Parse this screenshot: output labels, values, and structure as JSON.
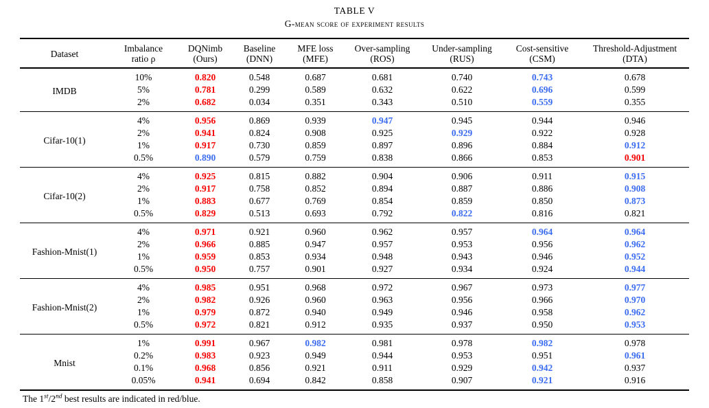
{
  "caption": {
    "number": "TABLE V",
    "title": "G-mean score of experiment results"
  },
  "colors": {
    "first_best": "#f80000",
    "second_best": "#3b6cf2",
    "text": "#000000",
    "background": "#ffffff"
  },
  "table": {
    "columns": [
      {
        "line1": "Dataset",
        "line2": ""
      },
      {
        "line1": "Imbalance",
        "line2": "ratio ρ"
      },
      {
        "line1": "DQNimb",
        "line2": "(Ours)"
      },
      {
        "line1": "Baseline",
        "line2": "(DNN)"
      },
      {
        "line1": "MFE loss",
        "line2": "(MFE)"
      },
      {
        "line1": "Over-sampling",
        "line2": "(ROS)"
      },
      {
        "line1": "Under-sampling",
        "line2": "(RUS)"
      },
      {
        "line1": "Cost-sensitive",
        "line2": "(CSM)"
      },
      {
        "line1": "Threshold-Adjustment",
        "line2": "(DTA)"
      }
    ],
    "rank_meaning": {
      "1": "first best, shown red bold",
      "2": "second best, shown blue bold",
      "0": "normal"
    },
    "groups": [
      {
        "dataset": "IMDB",
        "rows": [
          {
            "ratio": "10%",
            "values": [
              "0.820",
              "0.548",
              "0.687",
              "0.681",
              "0.740",
              "0.743",
              "0.678"
            ],
            "ranks": [
              1,
              0,
              0,
              0,
              0,
              2,
              0
            ]
          },
          {
            "ratio": "5%",
            "values": [
              "0.781",
              "0.299",
              "0.589",
              "0.632",
              "0.622",
              "0.696",
              "0.599"
            ],
            "ranks": [
              1,
              0,
              0,
              0,
              0,
              2,
              0
            ]
          },
          {
            "ratio": "2%",
            "values": [
              "0.682",
              "0.034",
              "0.351",
              "0.343",
              "0.510",
              "0.559",
              "0.355"
            ],
            "ranks": [
              1,
              0,
              0,
              0,
              0,
              2,
              0
            ]
          }
        ]
      },
      {
        "dataset": "Cifar-10(1)",
        "rows": [
          {
            "ratio": "4%",
            "values": [
              "0.956",
              "0.869",
              "0.939",
              "0.947",
              "0.945",
              "0.944",
              "0.946"
            ],
            "ranks": [
              1,
              0,
              0,
              2,
              0,
              0,
              0
            ]
          },
          {
            "ratio": "2%",
            "values": [
              "0.941",
              "0.824",
              "0.908",
              "0.925",
              "0.929",
              "0.922",
              "0.928"
            ],
            "ranks": [
              1,
              0,
              0,
              0,
              2,
              0,
              0
            ]
          },
          {
            "ratio": "1%",
            "values": [
              "0.917",
              "0.730",
              "0.859",
              "0.897",
              "0.896",
              "0.884",
              "0.912"
            ],
            "ranks": [
              1,
              0,
              0,
              0,
              0,
              0,
              2
            ]
          },
          {
            "ratio": "0.5%",
            "values": [
              "0.890",
              "0.579",
              "0.759",
              "0.838",
              "0.866",
              "0.853",
              "0.901"
            ],
            "ranks": [
              2,
              0,
              0,
              0,
              0,
              0,
              1
            ]
          }
        ]
      },
      {
        "dataset": "Cifar-10(2)",
        "rows": [
          {
            "ratio": "4%",
            "values": [
              "0.925",
              "0.815",
              "0.882",
              "0.904",
              "0.906",
              "0.911",
              "0.915"
            ],
            "ranks": [
              1,
              0,
              0,
              0,
              0,
              0,
              2
            ]
          },
          {
            "ratio": "2%",
            "values": [
              "0.917",
              "0.758",
              "0.852",
              "0.894",
              "0.887",
              "0.886",
              "0.908"
            ],
            "ranks": [
              1,
              0,
              0,
              0,
              0,
              0,
              2
            ]
          },
          {
            "ratio": "1%",
            "values": [
              "0.883",
              "0.677",
              "0.769",
              "0.854",
              "0.859",
              "0.850",
              "0.873"
            ],
            "ranks": [
              1,
              0,
              0,
              0,
              0,
              0,
              2
            ]
          },
          {
            "ratio": "0.5%",
            "values": [
              "0.829",
              "0.513",
              "0.693",
              "0.792",
              "0.822",
              "0.816",
              "0.821"
            ],
            "ranks": [
              1,
              0,
              0,
              0,
              2,
              0,
              0
            ]
          }
        ]
      },
      {
        "dataset": "Fashion-Mnist(1)",
        "rows": [
          {
            "ratio": "4%",
            "values": [
              "0.971",
              "0.921",
              "0.960",
              "0.962",
              "0.957",
              "0.964",
              "0.964"
            ],
            "ranks": [
              1,
              0,
              0,
              0,
              0,
              2,
              2
            ]
          },
          {
            "ratio": "2%",
            "values": [
              "0.966",
              "0.885",
              "0.947",
              "0.957",
              "0.953",
              "0.956",
              "0.962"
            ],
            "ranks": [
              1,
              0,
              0,
              0,
              0,
              0,
              2
            ]
          },
          {
            "ratio": "1%",
            "values": [
              "0.959",
              "0.853",
              "0.934",
              "0.948",
              "0.943",
              "0.946",
              "0.952"
            ],
            "ranks": [
              1,
              0,
              0,
              0,
              0,
              0,
              2
            ]
          },
          {
            "ratio": "0.5%",
            "values": [
              "0.950",
              "0.757",
              "0.901",
              "0.927",
              "0.934",
              "0.924",
              "0.944"
            ],
            "ranks": [
              1,
              0,
              0,
              0,
              0,
              0,
              2
            ]
          }
        ]
      },
      {
        "dataset": "Fashion-Mnist(2)",
        "rows": [
          {
            "ratio": "4%",
            "values": [
              "0.985",
              "0.951",
              "0.968",
              "0.972",
              "0.967",
              "0.973",
              "0.977"
            ],
            "ranks": [
              1,
              0,
              0,
              0,
              0,
              0,
              2
            ]
          },
          {
            "ratio": "2%",
            "values": [
              "0.982",
              "0.926",
              "0.960",
              "0.963",
              "0.956",
              "0.966",
              "0.970"
            ],
            "ranks": [
              1,
              0,
              0,
              0,
              0,
              0,
              2
            ]
          },
          {
            "ratio": "1%",
            "values": [
              "0.979",
              "0.872",
              "0.940",
              "0.949",
              "0.946",
              "0.958",
              "0.962"
            ],
            "ranks": [
              1,
              0,
              0,
              0,
              0,
              0,
              2
            ]
          },
          {
            "ratio": "0.5%",
            "values": [
              "0.972",
              "0.821",
              "0.912",
              "0.935",
              "0.937",
              "0.950",
              "0.953"
            ],
            "ranks": [
              1,
              0,
              0,
              0,
              0,
              0,
              2
            ]
          }
        ]
      },
      {
        "dataset": "Mnist",
        "rows": [
          {
            "ratio": "1%",
            "values": [
              "0.991",
              "0.967",
              "0.982",
              "0.981",
              "0.978",
              "0.982",
              "0.978"
            ],
            "ranks": [
              1,
              0,
              2,
              0,
              0,
              2,
              0
            ]
          },
          {
            "ratio": "0.2%",
            "values": [
              "0.983",
              "0.923",
              "0.949",
              "0.944",
              "0.953",
              "0.951",
              "0.961"
            ],
            "ranks": [
              1,
              0,
              0,
              0,
              0,
              0,
              2
            ]
          },
          {
            "ratio": "0.1%",
            "values": [
              "0.968",
              "0.856",
              "0.921",
              "0.911",
              "0.929",
              "0.942",
              "0.937"
            ],
            "ranks": [
              1,
              0,
              0,
              0,
              0,
              2,
              0
            ]
          },
          {
            "ratio": "0.05%",
            "values": [
              "0.941",
              "0.694",
              "0.842",
              "0.858",
              "0.907",
              "0.921",
              "0.916"
            ],
            "ranks": [
              1,
              0,
              0,
              0,
              0,
              2,
              0
            ]
          }
        ]
      }
    ]
  },
  "footnote": {
    "prefix": "The 1",
    "sup1": "st",
    "mid": "/2",
    "sup2": "nd",
    "suffix": " best results are indicated in red/blue."
  }
}
